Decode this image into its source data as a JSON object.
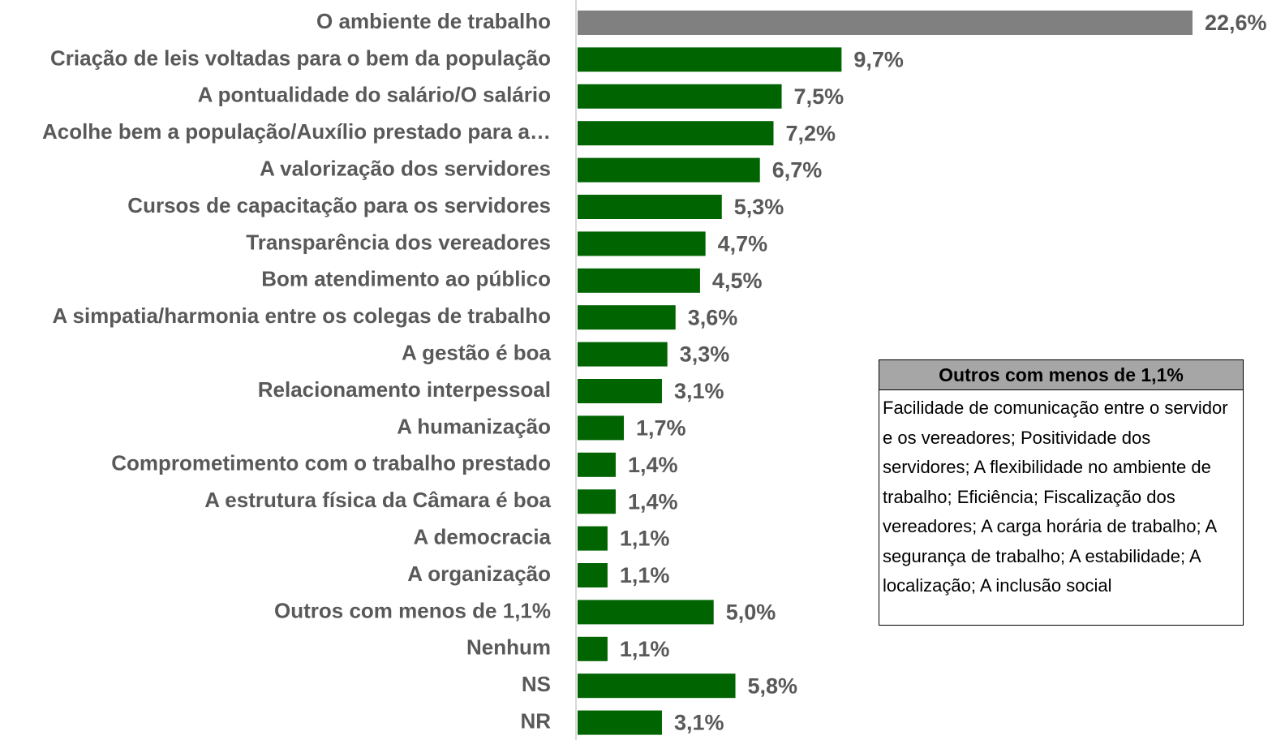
{
  "chart_data": {
    "type": "hbar",
    "categories": [
      "O ambiente de trabalho",
      "Criação de leis voltadas para o bem da população",
      "A pontualidade do salário/O salário",
      "Acolhe bem a população/Auxílio prestado para a…",
      "A valorização dos servidores",
      "Cursos de capacitação para os servidores",
      "Transparência dos vereadores",
      "Bom atendimento ao público",
      "A simpatia/harmonia entre os colegas de trabalho",
      "A gestão é boa",
      "Relacionamento interpessoal",
      "A humanização",
      "Comprometimento com o trabalho prestado",
      "A estrutura física da Câmara é boa",
      "A democracia",
      "A organização",
      "Outros com menos de 1,1%",
      "Nenhum",
      "NS",
      "NR"
    ],
    "values": [
      22.6,
      9.7,
      7.5,
      7.2,
      6.7,
      5.3,
      4.7,
      4.5,
      3.6,
      3.3,
      3.1,
      1.7,
      1.4,
      1.4,
      1.1,
      1.1,
      5.0,
      1.1,
      5.8,
      3.1
    ],
    "value_labels": [
      "22,6%",
      "9,7%",
      "7,5%",
      "7,2%",
      "6,7%",
      "5,3%",
      "4,7%",
      "4,5%",
      "3,6%",
      "3,3%",
      "3,1%",
      "1,7%",
      "1,4%",
      "1,4%",
      "1,1%",
      "1,1%",
      "5,0%",
      "1,1%",
      "5,8%",
      "3,1%"
    ],
    "colors": [
      "#808080",
      "#006400",
      "#006400",
      "#006400",
      "#006400",
      "#006400",
      "#006400",
      "#006400",
      "#006400",
      "#006400",
      "#006400",
      "#006400",
      "#006400",
      "#006400",
      "#006400",
      "#006400",
      "#006400",
      "#006400",
      "#006400",
      "#006400"
    ],
    "annotation": {
      "title": "Outros com menos de 1,1%",
      "text": "Facilidade de comunicação entre o servidor e os vereadores; Positividade dos servidores; A flexibilidade no ambiente de trabalho; Eficiência; Fiscalização dos vereadores; A carga horária de trabalho; A segurança de trabalho; A estabilidade; A localização; A inclusão social"
    }
  }
}
